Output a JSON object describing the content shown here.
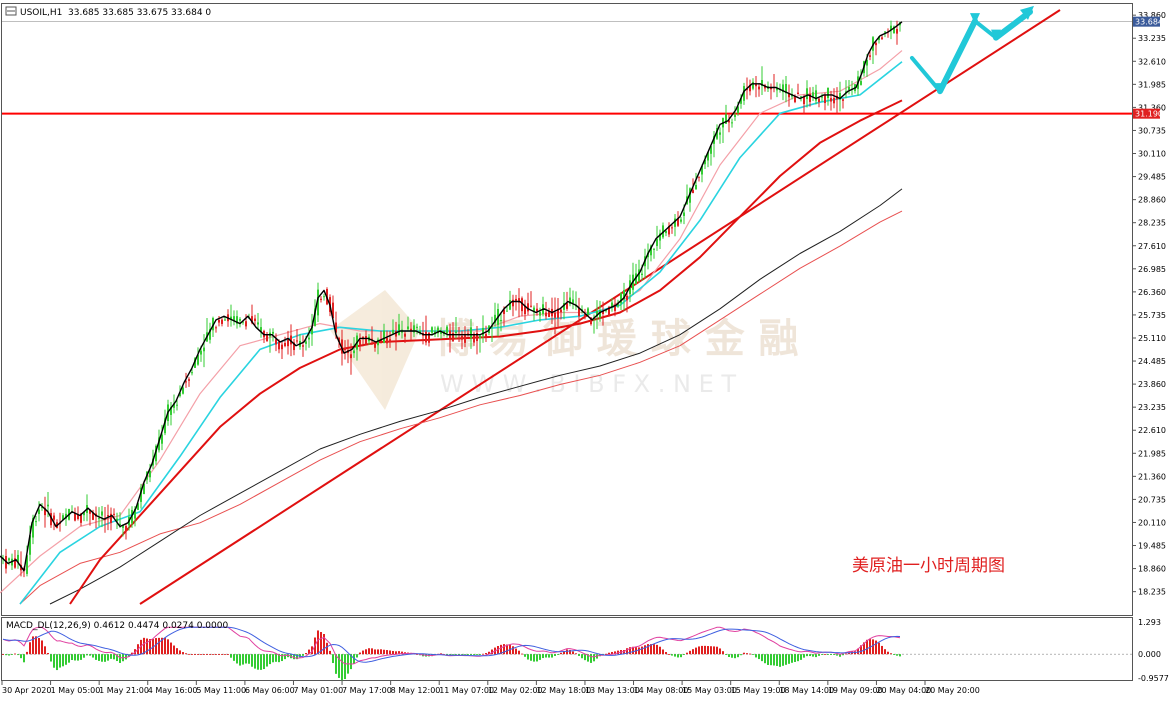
{
  "header": {
    "symbol": "USOIL,H1",
    "ohlc": "33.685 33.685 33.675 33.684 0",
    "indicator": "MACD_DL(12,26,9) 0.4612 0.4474 0.0274 0.0000"
  },
  "annotation": "美原油一小时周期图",
  "watermark": {
    "cn": "博 易 御 瑗 球 金 融",
    "en": "W W W . B I B F X . N E T"
  },
  "colors": {
    "price_line": "#000000",
    "ema_pink": "#f4a0a8",
    "ema_cyan": "#2ad4e0",
    "ma_red": "#e01010",
    "ma_black": "#202020",
    "ma_thin_red": "#e85050",
    "bull_candle": "#33cc33",
    "bear_candle": "#e02020",
    "level_line": "#ff0000",
    "arrow": "#21c8d8"
  },
  "chart_data": {
    "type": "candlestick",
    "instrument": "USOIL",
    "timeframe": "H1",
    "x_labels": [
      "30 Apr 2020",
      "1 May 05:00",
      "1 May 21:00",
      "4 May 16:00",
      "5 May 11:00",
      "6 May 06:00",
      "7 May 01:00",
      "7 May 17:00",
      "8 May 12:00",
      "11 May 07:00",
      "12 May 02:00",
      "12 May 18:00",
      "13 May 13:00",
      "14 May 08:00",
      "15 May 03:00",
      "15 May 19:00",
      "18 May 14:00",
      "19 May 09:00",
      "20 May 04:00",
      "20 May 20:00"
    ],
    "y_ticks": [
      "33.860",
      "33.235",
      "32.610",
      "31.985",
      "31.360",
      "30.735",
      "30.110",
      "29.485",
      "28.860",
      "28.235",
      "27.610",
      "26.985",
      "26.360",
      "25.735",
      "25.110",
      "24.485",
      "23.860",
      "23.235",
      "22.610",
      "21.985",
      "21.360",
      "20.735",
      "20.110",
      "19.485",
      "18.860",
      "18.235"
    ],
    "ylim": [
      17.9,
      34.0
    ],
    "current_price": "33.684",
    "horizontal_level": "31.190",
    "macd_ticks": [
      "1.293",
      "0.000",
      "-0.9577"
    ],
    "macd_ylim": [
      -0.9577,
      1.293
    ],
    "price_path": [
      [
        0,
        19.2
      ],
      [
        8,
        19.0
      ],
      [
        16,
        19.1
      ],
      [
        24,
        18.8
      ],
      [
        32,
        20.1
      ],
      [
        40,
        20.6
      ],
      [
        48,
        20.4
      ],
      [
        56,
        20.0
      ],
      [
        64,
        20.2
      ],
      [
        72,
        20.4
      ],
      [
        80,
        20.3
      ],
      [
        88,
        20.5
      ],
      [
        96,
        20.3
      ],
      [
        104,
        20.2
      ],
      [
        112,
        20.3
      ],
      [
        120,
        20.0
      ],
      [
        128,
        20.1
      ],
      [
        136,
        20.5
      ],
      [
        144,
        21.2
      ],
      [
        152,
        21.7
      ],
      [
        160,
        22.4
      ],
      [
        168,
        23.1
      ],
      [
        176,
        23.4
      ],
      [
        184,
        23.9
      ],
      [
        192,
        24.3
      ],
      [
        200,
        24.8
      ],
      [
        208,
        25.2
      ],
      [
        216,
        25.6
      ],
      [
        224,
        25.7
      ],
      [
        232,
        25.6
      ],
      [
        240,
        25.5
      ],
      [
        248,
        25.7
      ],
      [
        256,
        25.4
      ],
      [
        264,
        25.2
      ],
      [
        272,
        25.2
      ],
      [
        280,
        25.0
      ],
      [
        288,
        25.1
      ],
      [
        296,
        24.9
      ],
      [
        304,
        25.0
      ],
      [
        312,
        25.4
      ],
      [
        318,
        26.2
      ],
      [
        324,
        26.4
      ],
      [
        330,
        26.0
      ],
      [
        336,
        25.2
      ],
      [
        344,
        24.7
      ],
      [
        352,
        24.8
      ],
      [
        360,
        25.1
      ],
      [
        368,
        25.1
      ],
      [
        376,
        25.0
      ],
      [
        384,
        25.1
      ],
      [
        392,
        25.2
      ],
      [
        400,
        25.3
      ],
      [
        408,
        25.3
      ],
      [
        416,
        25.3
      ],
      [
        424,
        25.2
      ],
      [
        432,
        25.2
      ],
      [
        440,
        25.3
      ],
      [
        448,
        25.2
      ],
      [
        456,
        25.2
      ],
      [
        464,
        25.2
      ],
      [
        472,
        25.2
      ],
      [
        480,
        25.2
      ],
      [
        488,
        25.3
      ],
      [
        496,
        25.6
      ],
      [
        504,
        25.9
      ],
      [
        512,
        26.1
      ],
      [
        520,
        26.1
      ],
      [
        528,
        25.9
      ],
      [
        536,
        25.8
      ],
      [
        544,
        25.9
      ],
      [
        552,
        25.8
      ],
      [
        560,
        25.9
      ],
      [
        568,
        26.1
      ],
      [
        576,
        26.0
      ],
      [
        584,
        25.8
      ],
      [
        592,
        25.6
      ],
      [
        600,
        25.8
      ],
      [
        608,
        25.9
      ],
      [
        616,
        26.0
      ],
      [
        624,
        26.2
      ],
      [
        632,
        26.6
      ],
      [
        640,
        26.9
      ],
      [
        648,
        27.4
      ],
      [
        656,
        27.8
      ],
      [
        664,
        28.0
      ],
      [
        672,
        28.2
      ],
      [
        680,
        28.4
      ],
      [
        688,
        28.9
      ],
      [
        696,
        29.4
      ],
      [
        704,
        29.9
      ],
      [
        712,
        30.4
      ],
      [
        720,
        30.9
      ],
      [
        728,
        31.0
      ],
      [
        736,
        31.3
      ],
      [
        744,
        31.8
      ],
      [
        752,
        32.0
      ],
      [
        760,
        32.0
      ],
      [
        768,
        31.9
      ],
      [
        776,
        31.9
      ],
      [
        784,
        31.8
      ],
      [
        792,
        31.7
      ],
      [
        800,
        31.6
      ],
      [
        808,
        31.7
      ],
      [
        816,
        31.6
      ],
      [
        824,
        31.7
      ],
      [
        832,
        31.7
      ],
      [
        840,
        31.6
      ],
      [
        848,
        31.8
      ],
      [
        856,
        31.9
      ],
      [
        862,
        32.3
      ],
      [
        868,
        32.8
      ],
      [
        874,
        33.1
      ],
      [
        880,
        33.3
      ],
      [
        888,
        33.4
      ],
      [
        896,
        33.55
      ],
      [
        902,
        33.68
      ]
    ],
    "ema_pink_path": [
      [
        0,
        18.2
      ],
      [
        40,
        19.2
      ],
      [
        80,
        20.0
      ],
      [
        120,
        20.3
      ],
      [
        160,
        21.8
      ],
      [
        200,
        23.6
      ],
      [
        240,
        24.9
      ],
      [
        280,
        25.2
      ],
      [
        320,
        25.5
      ],
      [
        360,
        25.3
      ],
      [
        400,
        25.3
      ],
      [
        440,
        25.3
      ],
      [
        480,
        25.3
      ],
      [
        520,
        25.7
      ],
      [
        560,
        25.8
      ],
      [
        600,
        25.8
      ],
      [
        640,
        26.4
      ],
      [
        680,
        27.8
      ],
      [
        720,
        29.8
      ],
      [
        760,
        31.2
      ],
      [
        800,
        31.7
      ],
      [
        840,
        31.8
      ],
      [
        880,
        32.4
      ],
      [
        902,
        32.9
      ]
    ],
    "ema_cyan_path": [
      [
        20,
        17.9
      ],
      [
        60,
        19.3
      ],
      [
        100,
        20.0
      ],
      [
        140,
        20.4
      ],
      [
        180,
        21.9
      ],
      [
        220,
        23.5
      ],
      [
        260,
        24.8
      ],
      [
        300,
        25.2
      ],
      [
        340,
        25.4
      ],
      [
        380,
        25.3
      ],
      [
        420,
        25.3
      ],
      [
        460,
        25.3
      ],
      [
        500,
        25.4
      ],
      [
        540,
        25.6
      ],
      [
        580,
        25.7
      ],
      [
        620,
        26.0
      ],
      [
        660,
        26.9
      ],
      [
        700,
        28.3
      ],
      [
        740,
        30.0
      ],
      [
        780,
        31.2
      ],
      [
        820,
        31.5
      ],
      [
        860,
        31.7
      ],
      [
        902,
        32.6
      ]
    ],
    "ma_red_path": [
      [
        70,
        17.9
      ],
      [
        100,
        19.1
      ],
      [
        140,
        20.3
      ],
      [
        180,
        21.5
      ],
      [
        220,
        22.7
      ],
      [
        260,
        23.6
      ],
      [
        300,
        24.3
      ],
      [
        340,
        24.8
      ],
      [
        380,
        25.0
      ],
      [
        420,
        25.05
      ],
      [
        460,
        25.1
      ],
      [
        500,
        25.15
      ],
      [
        540,
        25.3
      ],
      [
        580,
        25.5
      ],
      [
        620,
        25.8
      ],
      [
        660,
        26.4
      ],
      [
        700,
        27.3
      ],
      [
        740,
        28.4
      ],
      [
        780,
        29.5
      ],
      [
        820,
        30.4
      ],
      [
        860,
        31.0
      ],
      [
        902,
        31.55
      ]
    ],
    "ma_black_path": [
      [
        50,
        17.9
      ],
      [
        80,
        18.3
      ],
      [
        120,
        18.9
      ],
      [
        160,
        19.6
      ],
      [
        200,
        20.3
      ],
      [
        240,
        20.9
      ],
      [
        280,
        21.5
      ],
      [
        320,
        22.1
      ],
      [
        360,
        22.5
      ],
      [
        400,
        22.85
      ],
      [
        440,
        23.15
      ],
      [
        480,
        23.5
      ],
      [
        520,
        23.8
      ],
      [
        560,
        24.1
      ],
      [
        600,
        24.35
      ],
      [
        640,
        24.7
      ],
      [
        680,
        25.2
      ],
      [
        720,
        25.9
      ],
      [
        760,
        26.7
      ],
      [
        800,
        27.4
      ],
      [
        840,
        28.0
      ],
      [
        880,
        28.7
      ],
      [
        902,
        29.15
      ]
    ],
    "ma_thin_red_path": [
      [
        20,
        17.9
      ],
      [
        40,
        18.4
      ],
      [
        80,
        19.0
      ],
      [
        120,
        19.3
      ],
      [
        160,
        19.8
      ],
      [
        200,
        20.1
      ],
      [
        240,
        20.6
      ],
      [
        280,
        21.2
      ],
      [
        320,
        21.8
      ],
      [
        360,
        22.3
      ],
      [
        400,
        22.65
      ],
      [
        440,
        22.95
      ],
      [
        480,
        23.3
      ],
      [
        520,
        23.55
      ],
      [
        560,
        23.85
      ],
      [
        600,
        24.1
      ],
      [
        640,
        24.45
      ],
      [
        680,
        24.9
      ],
      [
        720,
        25.6
      ],
      [
        760,
        26.3
      ],
      [
        800,
        27.0
      ],
      [
        840,
        27.6
      ],
      [
        880,
        28.25
      ],
      [
        902,
        28.55
      ]
    ],
    "trendline": [
      [
        140,
        17.9
      ],
      [
        1060,
        34.0
      ]
    ],
    "projection_arrow": [
      [
        912,
        32.7
      ],
      [
        940,
        31.8
      ],
      [
        975,
        33.7
      ],
      [
        996,
        33.25
      ],
      [
        1030,
        33.95
      ]
    ]
  }
}
